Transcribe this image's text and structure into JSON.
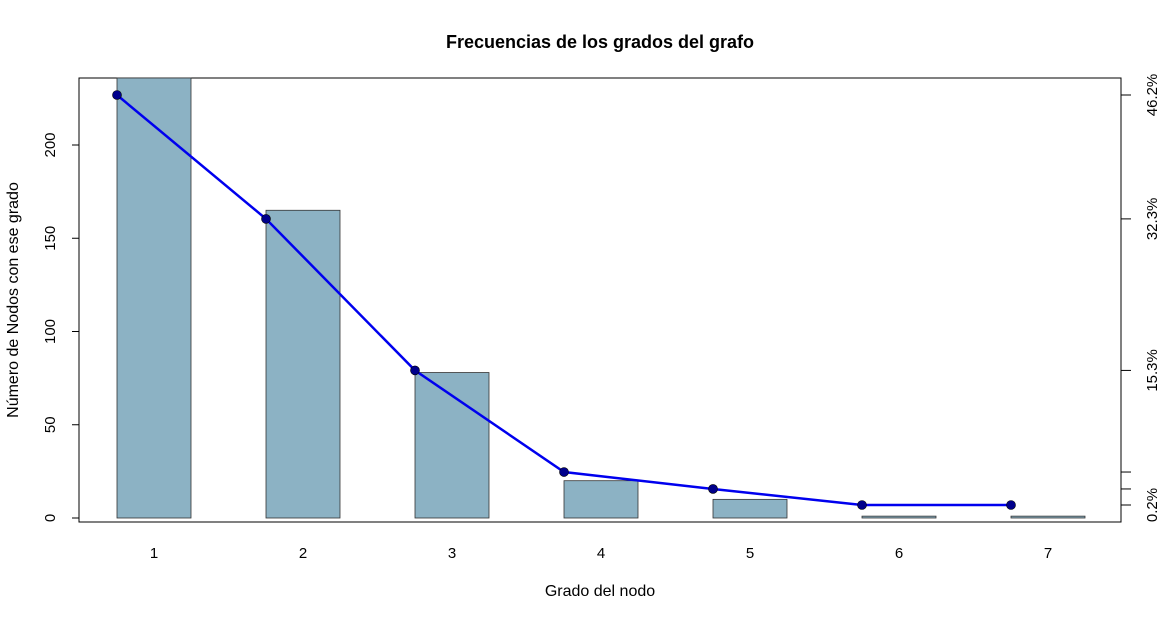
{
  "chart_data": {
    "type": "bar",
    "title": "Frecuencias de los grados del grafo",
    "xlabel": "Grado del nodo",
    "ylabel": "Número de Nodos con ese grado",
    "categories": [
      "1",
      "2",
      "3",
      "4",
      "5",
      "6",
      "7"
    ],
    "values": [
      236,
      165,
      78,
      20,
      10,
      1,
      1
    ],
    "ylim": [
      0,
      236
    ],
    "yticks": [
      0,
      50,
      100,
      150,
      200
    ],
    "bar_color": "#8cb2c4",
    "line_color": "#0000ee",
    "point_color": "#00008b",
    "line_series": {
      "name": "",
      "cumulative_percent": [
        46.2,
        32.3,
        15.3,
        3.9,
        2.0,
        0.2,
        0.2
      ]
    },
    "right_axis": {
      "labels": [
        "46.2%",
        "32.3%",
        "15.3%",
        "0.2%"
      ],
      "tick_values": [
        46.2,
        32.3,
        15.3,
        3.9,
        2.0,
        0.2
      ]
    },
    "grid": false,
    "legend": "none"
  }
}
